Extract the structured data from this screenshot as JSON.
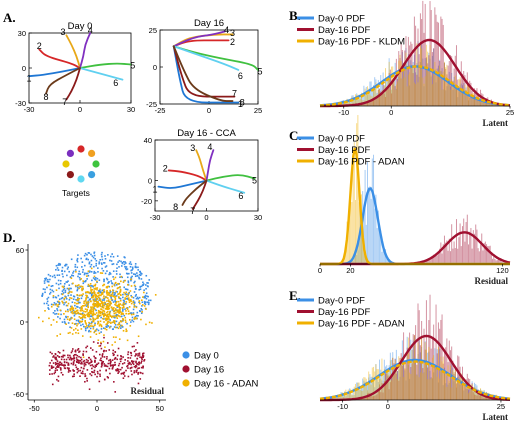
{
  "panel_labels": {
    "A": "A.",
    "B": "B.",
    "C": "C.",
    "D": "D.",
    "E": "E."
  },
  "targets_label": "Targets",
  "target_colors": [
    "#7b2fbf",
    "#d62728",
    "#f0a020",
    "#3ec43e",
    "#3aa0e0",
    "#60d8f0",
    "#8b1a1a",
    "#e8c800"
  ],
  "reach_colors": [
    "#1f77d4",
    "#d62728",
    "#e8a818",
    "#8030c0",
    "#40c040",
    "#60d0f0",
    "#8b1a1a",
    "#6b3a1a"
  ],
  "colors": {
    "day0": "#3b8fe6",
    "day16": "#a01030",
    "adan": "#f0b000",
    "kldm": "#f0b000"
  },
  "chart_data": [
    {
      "id": "A1",
      "type": "line",
      "title": "Day 0",
      "xlim": [
        -30,
        30
      ],
      "ylim": [
        -30,
        30
      ],
      "xticks": [
        "-30",
        "0",
        "30"
      ],
      "yticks": [
        "30",
        "0",
        "-30"
      ],
      "target_numbers": [
        "1",
        "2",
        "3",
        "4",
        "5",
        "6",
        "7",
        "8"
      ],
      "series": [
        {
          "points": [
            [
              0,
              0
            ],
            [
              -10,
              -3
            ],
            [
              -22,
              -6
            ],
            [
              -30,
              -7
            ]
          ]
        },
        {
          "points": [
            [
              0,
              0
            ],
            [
              -5,
              4
            ],
            [
              -20,
              10
            ],
            [
              -24,
              16
            ]
          ]
        },
        {
          "points": [
            [
              0,
              0
            ],
            [
              -2,
              10
            ],
            [
              -5,
              20
            ],
            [
              -8,
              28
            ]
          ]
        },
        {
          "points": [
            [
              0,
              0
            ],
            [
              2,
              10
            ],
            [
              3,
              20
            ],
            [
              6,
              30
            ]
          ]
        },
        {
          "points": [
            [
              0,
              0
            ],
            [
              12,
              3
            ],
            [
              22,
              4
            ],
            [
              30,
              3
            ]
          ]
        },
        {
          "points": [
            [
              0,
              0
            ],
            [
              10,
              -4
            ],
            [
              20,
              -8
            ],
            [
              25,
              -10
            ]
          ]
        },
        {
          "points": [
            [
              0,
              0
            ],
            [
              -2,
              -10
            ],
            [
              -5,
              -20
            ],
            [
              -8,
              -27
            ]
          ]
        },
        {
          "points": [
            [
              0,
              0
            ],
            [
              -8,
              -6
            ],
            [
              -18,
              -14
            ],
            [
              -20,
              -22
            ]
          ]
        }
      ]
    },
    {
      "id": "A2",
      "type": "line",
      "title": "Day 16",
      "xlim": [
        -25,
        25
      ],
      "ylim": [
        -25,
        25
      ],
      "xticks": [
        "-25",
        "0",
        "25"
      ],
      "yticks": [
        "25",
        "0",
        "-25"
      ],
      "target_numbers": [
        "1",
        "2",
        "3",
        "4",
        "5",
        "6",
        "7",
        "8"
      ],
      "series": [
        {
          "points": [
            [
              -18,
              14
            ],
            [
              -15,
              -8
            ],
            [
              -12,
              -24
            ],
            [
              10,
              -24
            ],
            [
              15,
              -24
            ]
          ]
        },
        {
          "points": [
            [
              -18,
              14
            ],
            [
              -10,
              18
            ],
            [
              5,
              18
            ],
            [
              10,
              18
            ]
          ]
        },
        {
          "points": [
            [
              -18,
              14
            ],
            [
              -10,
              20
            ],
            [
              3,
              22
            ],
            [
              12,
              22
            ]
          ]
        },
        {
          "points": [
            [
              -18,
              14
            ],
            [
              -8,
              20
            ],
            [
              2,
              22
            ],
            [
              8,
              24
            ]
          ]
        },
        {
          "points": [
            [
              -18,
              14
            ],
            [
              -8,
              10
            ],
            [
              5,
              6
            ],
            [
              22,
              2
            ],
            [
              25,
              -2
            ]
          ]
        },
        {
          "points": [
            [
              -18,
              14
            ],
            [
              -5,
              8
            ],
            [
              8,
              2
            ],
            [
              15,
              -2
            ]
          ]
        },
        {
          "points": [
            [
              -18,
              14
            ],
            [
              -14,
              -6
            ],
            [
              -10,
              -20
            ],
            [
              8,
              -20
            ],
            [
              13,
              -20
            ]
          ]
        },
        {
          "points": [
            [
              -18,
              14
            ],
            [
              -13,
              -2
            ],
            [
              -8,
              -15
            ],
            [
              6,
              -23
            ],
            [
              12,
              -23
            ]
          ]
        }
      ]
    },
    {
      "id": "A3",
      "type": "line",
      "title": "Day 16 - CCA",
      "xlim": [
        -30,
        30
      ],
      "ylim": [
        -30,
        40
      ],
      "xticks": [
        "-30",
        "0",
        "30"
      ],
      "yticks": [
        "40",
        "0",
        "-20"
      ],
      "target_numbers": [
        "1",
        "2",
        "3",
        "4",
        "5",
        "6",
        "7",
        "8"
      ],
      "series": [
        {
          "points": [
            [
              0,
              0
            ],
            [
              -10,
              -4
            ],
            [
              -20,
              -8
            ],
            [
              -28,
              -6
            ]
          ]
        },
        {
          "points": [
            [
              0,
              0
            ],
            [
              -5,
              5
            ],
            [
              -15,
              9
            ],
            [
              -22,
              10
            ]
          ]
        },
        {
          "points": [
            [
              0,
              0
            ],
            [
              -2,
              10
            ],
            [
              -4,
              22
            ],
            [
              -6,
              30
            ]
          ]
        },
        {
          "points": [
            [
              0,
              0
            ],
            [
              1,
              10
            ],
            [
              2,
              20
            ],
            [
              4,
              30
            ]
          ]
        },
        {
          "points": [
            [
              0,
              0
            ],
            [
              10,
              4
            ],
            [
              20,
              6
            ],
            [
              28,
              2
            ]
          ]
        },
        {
          "points": [
            [
              0,
              0
            ],
            [
              10,
              -6
            ],
            [
              18,
              -10
            ],
            [
              22,
              -12
            ]
          ]
        },
        {
          "points": [
            [
              0,
              0
            ],
            [
              -2,
              -10
            ],
            [
              -5,
              -20
            ],
            [
              -8,
              -28
            ]
          ]
        },
        {
          "points": [
            [
              0,
              0
            ],
            [
              -6,
              -8
            ],
            [
              -12,
              -18
            ],
            [
              -14,
              -24
            ]
          ]
        }
      ]
    },
    {
      "id": "B",
      "type": "bar",
      "xlabel": "Latent",
      "xlim": [
        -15,
        25
      ],
      "xticks": [
        "-10",
        "0",
        "25"
      ],
      "legend": [
        "Day-0 PDF",
        "Day-16 PDF",
        "Day-16 PDF - KLDM"
      ],
      "series": [
        {
          "name": "Day-0 PDF",
          "mean": 5,
          "sd": 7,
          "peak": 0.45
        },
        {
          "name": "Day-16 PDF",
          "mean": 8,
          "sd": 5.5,
          "peak": 0.75
        },
        {
          "name": "Day-16 PDF - KLDM",
          "mean": 5.5,
          "sd": 7,
          "peak": 0.45
        }
      ]
    },
    {
      "id": "C",
      "type": "bar",
      "xlabel": "Residual",
      "xlim": [
        0,
        125
      ],
      "xticks": [
        "0",
        "20",
        "120"
      ],
      "legend": [
        "Day-0 PDF",
        "Day-16 PDF",
        "Day-16 PDF - ADAN"
      ],
      "series": [
        {
          "name": "Day-0 PDF",
          "mean": 33,
          "sd": 5,
          "peak": 0.62
        },
        {
          "name": "Day-16 PDF",
          "mean": 95,
          "sd": 12,
          "peak": 0.26
        },
        {
          "name": "Day-16 PDF - ADAN",
          "mean": 23,
          "sd": 3,
          "peak": 0.95
        }
      ]
    },
    {
      "id": "D",
      "type": "scatter",
      "xlabel": "Residual",
      "xlim": [
        -55,
        55
      ],
      "ylim": [
        -65,
        65
      ],
      "xticks": [
        "-50",
        "0",
        "50"
      ],
      "yticks": [
        "60",
        "0",
        "-60"
      ],
      "legend": [
        "Day 0",
        "Day 16",
        "Day 16 - ADAN"
      ],
      "series": [
        {
          "name": "Day 0",
          "center": [
            0,
            25
          ],
          "spread": [
            40,
            28
          ],
          "count": 650
        },
        {
          "name": "Day 16",
          "center": [
            0,
            -35
          ],
          "spread": [
            40,
            10
          ],
          "count": 420
        },
        {
          "name": "Day 16 - ADAN",
          "center": [
            2,
            12
          ],
          "spread": [
            28,
            20
          ],
          "count": 650
        }
      ]
    },
    {
      "id": "E",
      "type": "bar",
      "xlabel": "Latent",
      "xlim": [
        -15,
        27
      ],
      "xticks": [
        "-10",
        "0",
        "25"
      ],
      "legend": [
        "Day-0 PDF",
        "Day-16 PDF",
        "Day-16 PDF - ADAN"
      ],
      "series": [
        {
          "name": "Day-0 PDF",
          "mean": 6,
          "sd": 8,
          "peak": 0.5
        },
        {
          "name": "Day-16 PDF",
          "mean": 8.5,
          "sd": 5.5,
          "peak": 0.8
        },
        {
          "name": "Day-16 PDF - ADAN",
          "mean": 6,
          "sd": 8,
          "peak": 0.48
        }
      ]
    }
  ]
}
